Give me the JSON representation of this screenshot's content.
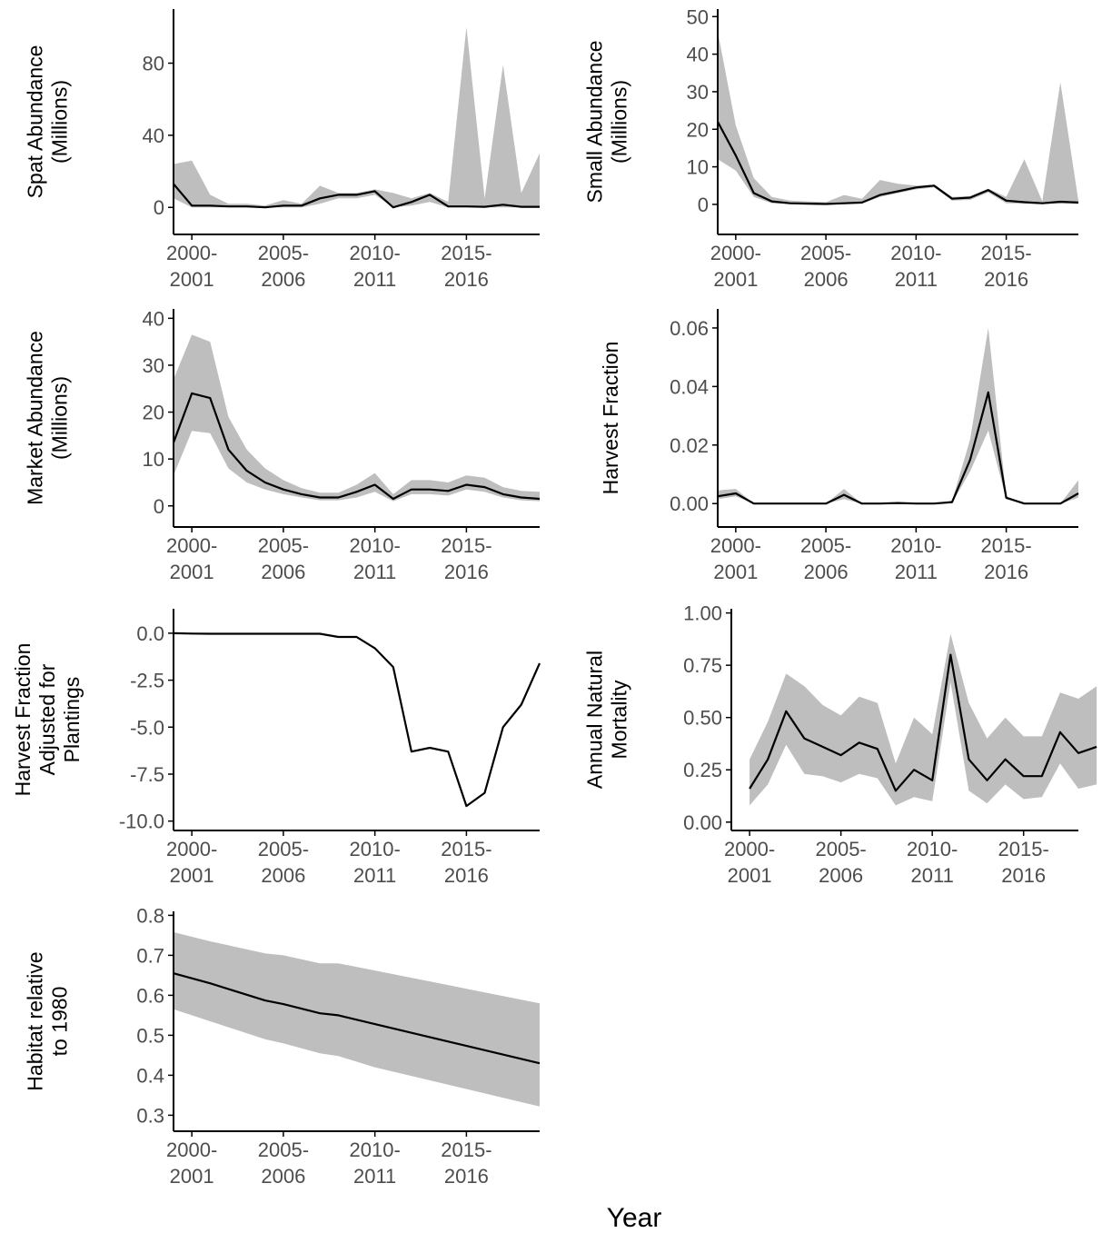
{
  "x_title": "Year",
  "x_tick_labels": [
    {
      "year": 2000,
      "line1": "2000-",
      "line2": "2001"
    },
    {
      "year": 2005,
      "line1": "2005-",
      "line2": "2006"
    },
    {
      "year": 2010,
      "line1": "2010-",
      "line2": "2011"
    },
    {
      "year": 2015,
      "line1": "2015-",
      "line2": "2016"
    }
  ],
  "colors": {
    "ribbon": "#bebebe",
    "line": "#000000",
    "axis": "#000000",
    "tick_text": "#4d4d4d"
  },
  "chart_data": [
    {
      "type": "line",
      "ylabel": [
        "Spat Abundance",
        "(Millions)"
      ],
      "xlim": [
        1999,
        2019
      ],
      "ylim": [
        -15,
        110
      ],
      "yticks": [
        0,
        40,
        80
      ],
      "ytick_labels": [
        "0",
        "40",
        "80"
      ],
      "x": [
        1999,
        2000,
        2001,
        2002,
        2003,
        2004,
        2005,
        2006,
        2007,
        2008,
        2009,
        2010,
        2011,
        2012,
        2013,
        2014,
        2015,
        2016,
        2017,
        2018,
        2019
      ],
      "series": [
        {
          "mean": [
            13,
            1,
            1,
            0.5,
            0.5,
            0,
            1,
            1,
            5,
            7,
            7,
            9,
            0,
            3,
            7,
            0.5,
            0.5,
            0.3,
            1.5,
            0.3,
            0.3
          ],
          "lower": [
            5,
            0,
            0,
            0,
            0,
            0,
            0,
            0,
            2,
            5,
            5,
            7,
            0,
            1,
            3,
            0,
            0,
            0,
            0,
            0,
            0
          ],
          "upper": [
            24,
            26,
            7,
            2,
            2,
            1,
            4,
            2,
            12,
            8,
            8,
            10,
            8,
            5,
            8,
            3,
            100,
            5,
            79,
            8,
            30
          ]
        }
      ]
    },
    {
      "type": "line",
      "ylabel": [
        "Small Abundance",
        "(Millions)"
      ],
      "xlim": [
        1999,
        2019
      ],
      "ylim": [
        -8,
        52
      ],
      "yticks": [
        0,
        10,
        20,
        30,
        40,
        50
      ],
      "ytick_labels": [
        "0",
        "10",
        "20",
        "30",
        "40",
        "50"
      ],
      "x": [
        1999,
        2000,
        2001,
        2002,
        2003,
        2004,
        2005,
        2006,
        2007,
        2008,
        2009,
        2010,
        2011,
        2012,
        2013,
        2014,
        2015,
        2016,
        2017,
        2018,
        2019
      ],
      "series": [
        {
          "mean": [
            22,
            13,
            3,
            0.8,
            0.3,
            0.2,
            0.1,
            0.3,
            0.5,
            2.5,
            3.5,
            4.5,
            5,
            1.5,
            1.8,
            3.8,
            1,
            0.6,
            0.3,
            0.7,
            0.5
          ],
          "lower": [
            12,
            9,
            2,
            0.3,
            0.1,
            0,
            0,
            0,
            0.2,
            2,
            3,
            4,
            4.5,
            1,
            1.2,
            3.2,
            0.3,
            0.2,
            0.1,
            0.2,
            0.1
          ],
          "upper": [
            46,
            21,
            7,
            2,
            1,
            0.8,
            0.6,
            2.5,
            1.5,
            6.5,
            5.5,
            5,
            5.2,
            2,
            2.2,
            4.2,
            2,
            12,
            0.8,
            32.5,
            1
          ]
        }
      ]
    },
    {
      "type": "line",
      "ylabel": [
        "Market Abundance",
        "(Millions)"
      ],
      "xlim": [
        1999,
        2019
      ],
      "ylim": [
        -4.5,
        42
      ],
      "yticks": [
        0,
        10,
        20,
        30,
        40
      ],
      "ytick_labels": [
        "0",
        "10",
        "20",
        "30",
        "40"
      ],
      "x": [
        1999,
        2000,
        2001,
        2002,
        2003,
        2004,
        2005,
        2006,
        2007,
        2008,
        2009,
        2010,
        2011,
        2012,
        2013,
        2014,
        2015,
        2016,
        2017,
        2018,
        2019
      ],
      "series": [
        {
          "mean": [
            13.5,
            24,
            23,
            12,
            7.5,
            5,
            3.5,
            2.5,
            1.8,
            1.8,
            3,
            4.5,
            1.5,
            3.5,
            3.5,
            3.2,
            4.5,
            4,
            2.5,
            1.8,
            1.5
          ],
          "lower": [
            6.5,
            16,
            15.5,
            8,
            5,
            3.5,
            2.5,
            1.8,
            1.2,
            1.2,
            1.8,
            3,
            1,
            2.5,
            2.5,
            2.2,
            3.5,
            3,
            1.8,
            1.2,
            1
          ],
          "upper": [
            27,
            36.5,
            35,
            19,
            12,
            8,
            5.5,
            3.8,
            2.8,
            2.8,
            4.5,
            7,
            2.5,
            5.5,
            5.5,
            5,
            6.5,
            6,
            4,
            3.2,
            3
          ]
        }
      ]
    },
    {
      "type": "line",
      "ylabel": [
        "Harvest Fraction"
      ],
      "xlim": [
        1999,
        2019
      ],
      "ylim": [
        -0.008,
        0.0665
      ],
      "yticks": [
        0,
        0.02,
        0.04,
        0.06
      ],
      "ytick_labels": [
        "0.00",
        "0.02",
        "0.04",
        "0.06"
      ],
      "x": [
        1999,
        2000,
        2001,
        2002,
        2003,
        2004,
        2005,
        2006,
        2007,
        2008,
        2009,
        2010,
        2011,
        2012,
        2013,
        2014,
        2015,
        2016,
        2017,
        2018,
        2019
      ],
      "series": [
        {
          "mean": [
            0.0025,
            0.0035,
            0,
            0,
            0,
            0,
            0,
            0.003,
            0,
            0,
            0.0002,
            0,
            0,
            0.0005,
            0.015,
            0.038,
            0.002,
            0,
            0,
            0,
            0.0035
          ],
          "lower": [
            0.0015,
            0.0025,
            0,
            0,
            0,
            0,
            0,
            0.0015,
            0,
            0,
            0,
            0,
            0,
            0.0002,
            0.011,
            0.025,
            0.0015,
            0,
            0,
            0,
            0.002
          ],
          "upper": [
            0.0045,
            0.005,
            0,
            0,
            0,
            0,
            0,
            0.005,
            0,
            0,
            0.0005,
            0,
            0,
            0.001,
            0.022,
            0.06,
            0.0025,
            0,
            0,
            0,
            0.008
          ]
        }
      ]
    },
    {
      "type": "line",
      "ylabel": [
        "Harvest Fraction",
        "Adjusted for",
        "Plantings"
      ],
      "xlim": [
        1999,
        2019
      ],
      "ylim": [
        -10.5,
        1.3
      ],
      "yticks": [
        -10,
        -7.5,
        -5,
        -2.5,
        0
      ],
      "ytick_labels": [
        "-10.0",
        "-7.5",
        "-5.0",
        "-2.5",
        "0.0"
      ],
      "x": [
        1999,
        2000,
        2001,
        2002,
        2003,
        2004,
        2005,
        2006,
        2007,
        2008,
        2009,
        2010,
        2011,
        2012,
        2013,
        2014,
        2015,
        2016,
        2017,
        2018,
        2019
      ],
      "series": [
        {
          "mean": [
            0,
            -0.02,
            -0.03,
            -0.03,
            -0.03,
            -0.03,
            -0.03,
            -0.03,
            -0.03,
            -0.2,
            -0.2,
            -0.8,
            -1.8,
            -6.3,
            -6.1,
            -6.3,
            -9.2,
            -8.5,
            -5,
            -3.8,
            -1.6
          ]
        }
      ]
    },
    {
      "type": "line",
      "ylabel": [
        "Annual Natural",
        "Mortality"
      ],
      "xlim": [
        1999,
        2018
      ],
      "ylim": [
        -0.04,
        1.02
      ],
      "yticks": [
        0,
        0.25,
        0.5,
        0.75,
        1
      ],
      "ytick_labels": [
        "0.00",
        "0.25",
        "0.50",
        "0.75",
        "1.00"
      ],
      "x": [
        2000,
        2001,
        2002,
        2003,
        2004,
        2005,
        2006,
        2007,
        2008,
        2009,
        2010,
        2011,
        2012,
        2013,
        2014,
        2015,
        2016,
        2017,
        2018,
        2019
      ],
      "series": [
        {
          "mean": [
            0.16,
            0.3,
            0.53,
            0.4,
            0.36,
            0.32,
            0.38,
            0.35,
            0.15,
            0.25,
            0.2,
            0.8,
            0.3,
            0.2,
            0.3,
            0.22,
            0.22,
            0.43,
            0.33,
            0.36
          ],
          "lower": [
            0.08,
            0.18,
            0.37,
            0.23,
            0.22,
            0.19,
            0.23,
            0.21,
            0.08,
            0.12,
            0.1,
            0.67,
            0.15,
            0.09,
            0.18,
            0.11,
            0.12,
            0.28,
            0.16,
            0.18
          ],
          "upper": [
            0.3,
            0.48,
            0.71,
            0.65,
            0.56,
            0.51,
            0.6,
            0.57,
            0.28,
            0.5,
            0.42,
            0.9,
            0.57,
            0.4,
            0.5,
            0.41,
            0.41,
            0.62,
            0.59,
            0.65
          ]
        }
      ]
    },
    {
      "type": "line",
      "ylabel": [
        "Habitat relative",
        "to 1980"
      ],
      "xlim": [
        1999,
        2019
      ],
      "ylim": [
        0.26,
        0.81
      ],
      "yticks": [
        0.3,
        0.4,
        0.5,
        0.6,
        0.7,
        0.8
      ],
      "ytick_labels": [
        "0.3",
        "0.4",
        "0.5",
        "0.6",
        "0.7",
        "0.8"
      ],
      "x": [
        1999,
        2001,
        2004,
        2005,
        2007,
        2008,
        2010,
        2019
      ],
      "series": [
        {
          "mean": [
            0.655,
            0.63,
            0.587,
            0.578,
            0.555,
            0.55,
            0.528,
            0.43
          ],
          "lower": [
            0.565,
            0.535,
            0.49,
            0.48,
            0.455,
            0.448,
            0.42,
            0.322
          ],
          "upper": [
            0.758,
            0.735,
            0.705,
            0.7,
            0.68,
            0.68,
            0.662,
            0.58
          ]
        }
      ]
    }
  ]
}
